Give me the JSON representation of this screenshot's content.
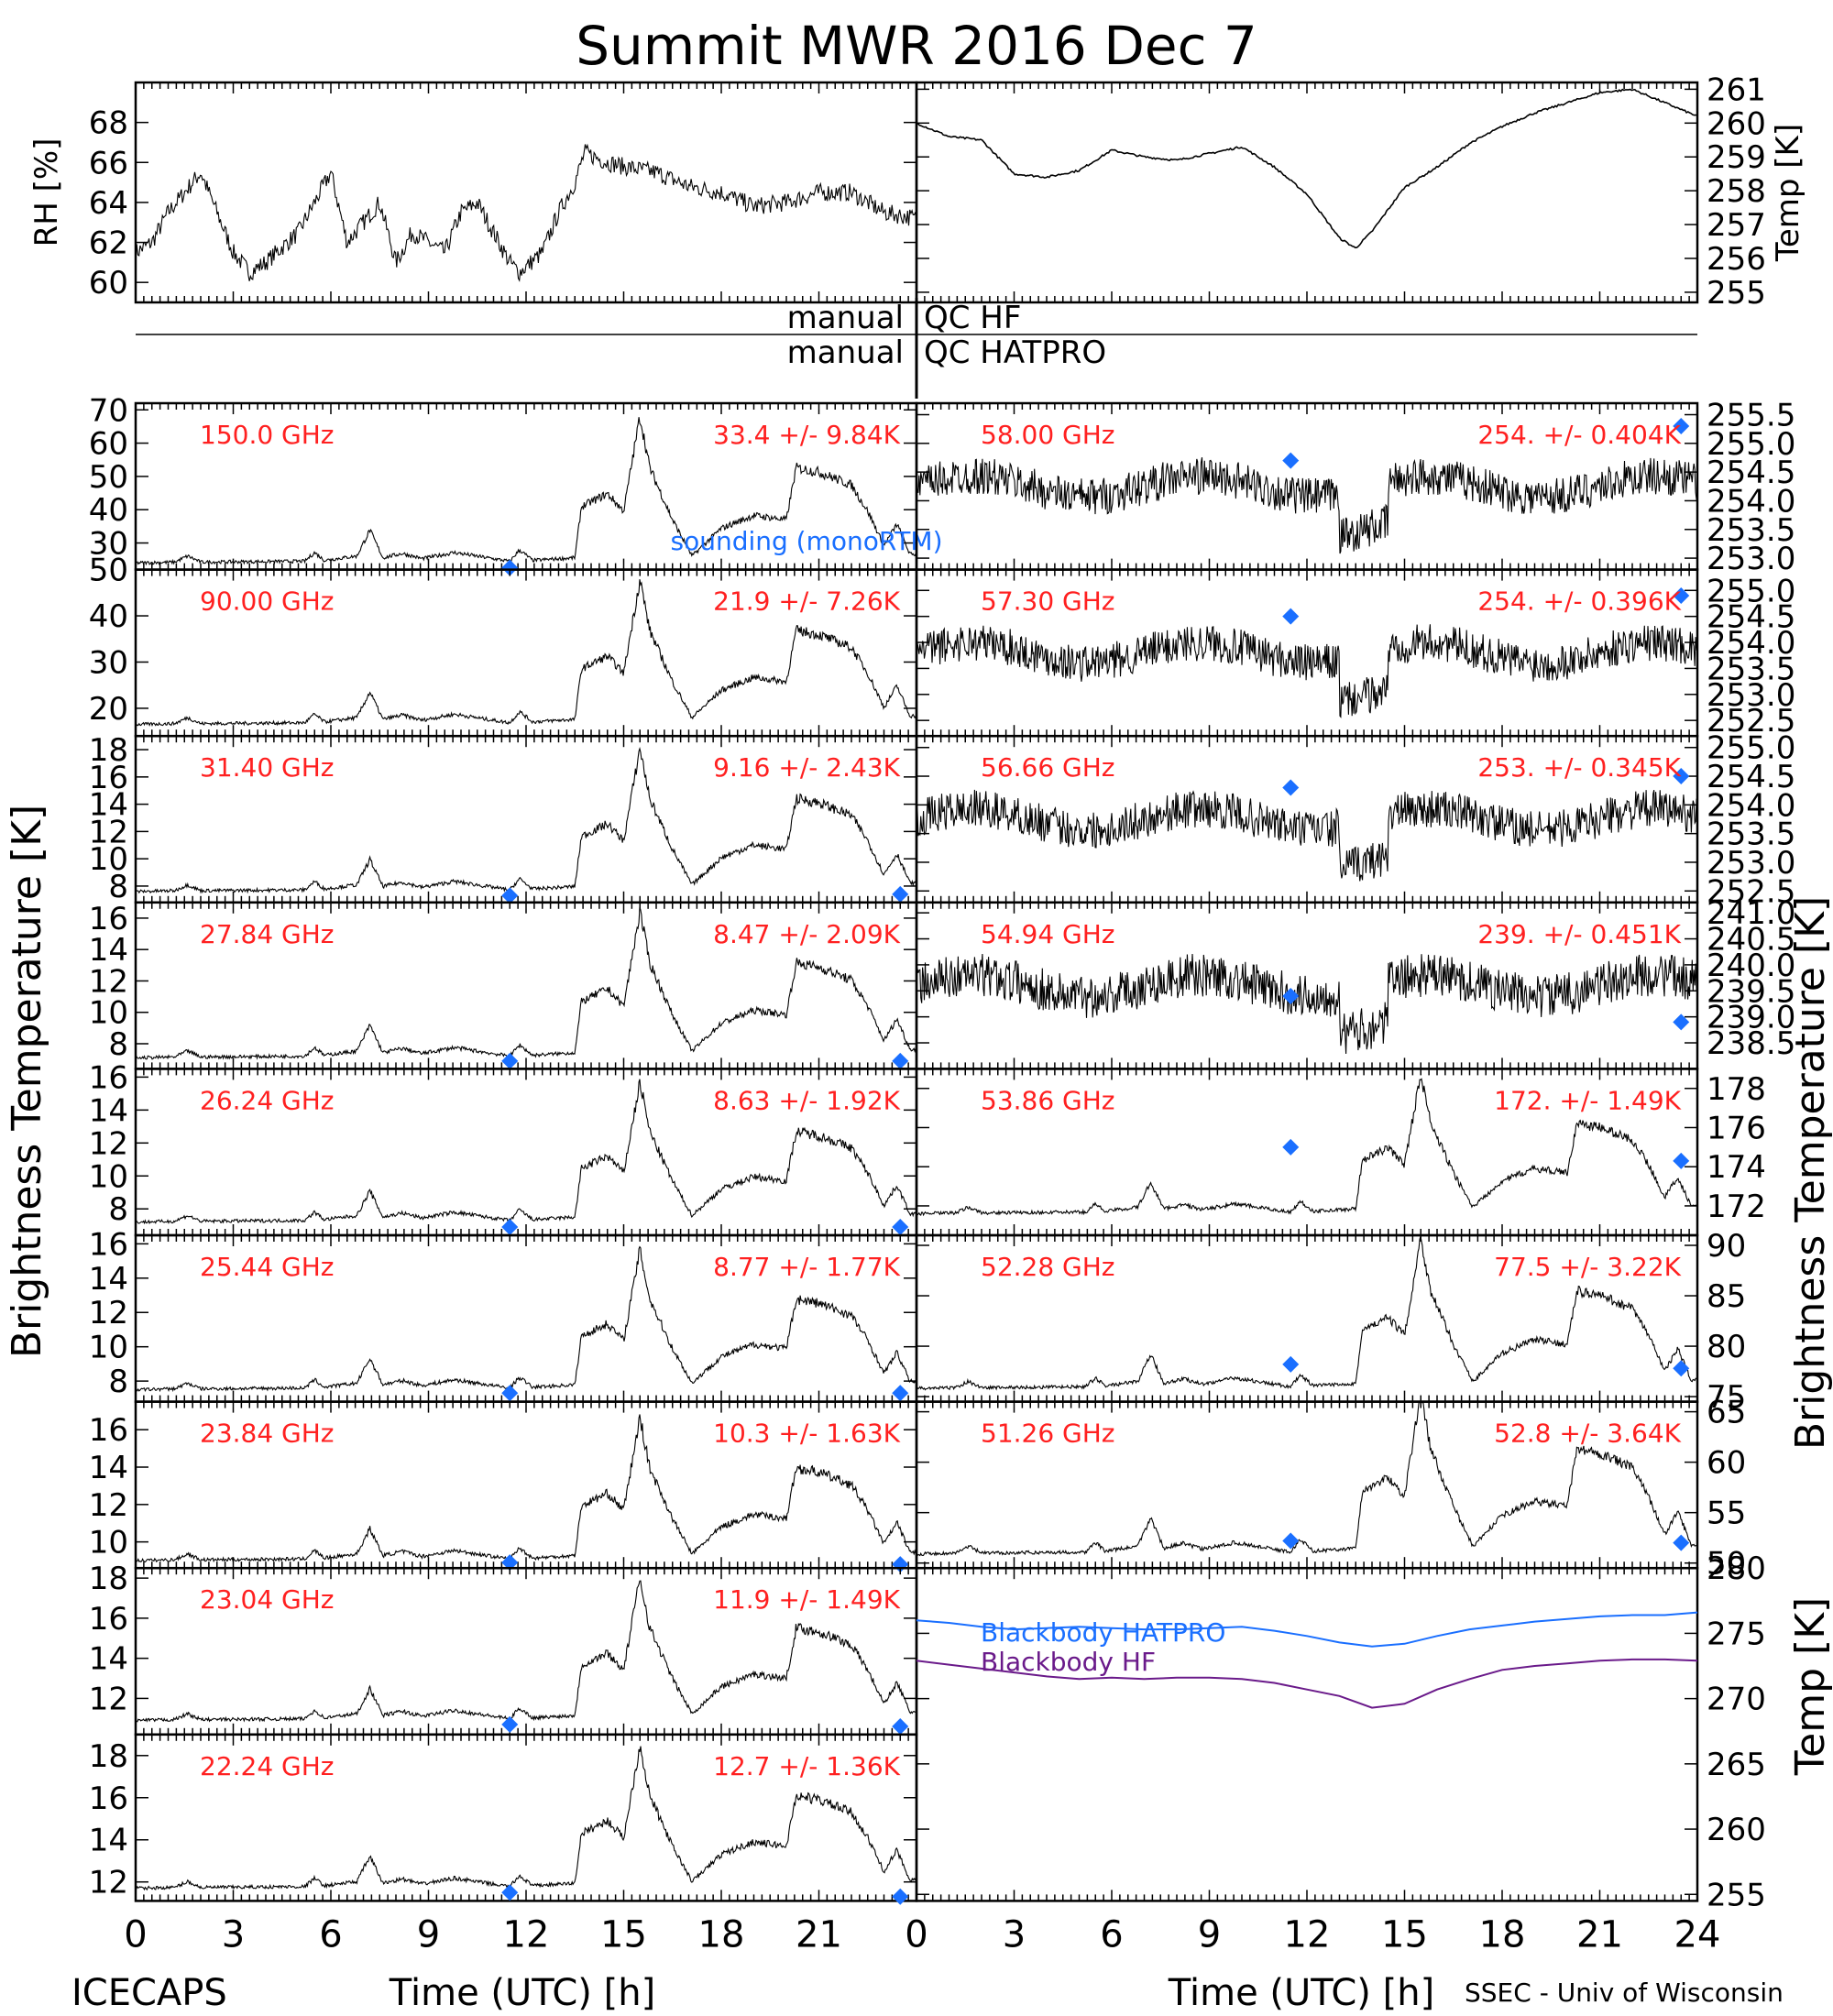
{
  "chart_data": {
    "type": "line",
    "title": "Summit MWR 2016 Dec  7",
    "xlabel": "Time (UTC) [h]",
    "xticks": [
      "0",
      "3",
      "6",
      "9",
      "12",
      "15",
      "18",
      "21",
      "0",
      "3",
      "6",
      "9",
      "12",
      "15",
      "18",
      "21",
      "24"
    ],
    "xlim": [
      0,
      24
    ],
    "ylabel_left": "Brightness Temperature [K]",
    "ylabel_right": "Brightness Temperature [K]",
    "footer_left": "ICECAPS",
    "footer_right": "SSEC - Univ of Wisconsin",
    "qc_labels": {
      "hf_left": "manual",
      "hf_right": "QC HF",
      "hat_left": "manual",
      "hat_right": "QC HATPRO"
    },
    "legend": {
      "sounding": "sounding (monoRTM)",
      "bb_hatpro": "Blackbody HATPRO",
      "bb_hf": "Blackbody HF"
    },
    "colors": {
      "channel_label": "#ff2020",
      "sounding": "#1a6fff",
      "bb_hatpro": "#1a6fff",
      "bb_hf": "#6a1a8a",
      "trace": "#000000"
    },
    "met": {
      "rh": {
        "label": "RH [%]",
        "ylim": [
          59,
          70
        ],
        "yticks": [
          "60",
          "62",
          "64",
          "66",
          "68"
        ],
        "t": [
          0,
          0.5,
          1,
          1.5,
          2,
          3,
          3.5,
          4,
          5,
          5.5,
          6,
          6.5,
          7,
          7.5,
          8,
          8.5,
          9,
          9.5,
          10,
          10.5,
          11,
          11.5,
          11.8,
          12.5,
          13,
          13.5,
          13.8,
          14.5,
          15,
          16,
          17,
          18,
          19,
          20,
          21,
          22,
          23,
          24
        ],
        "v": [
          61.5,
          62,
          63.5,
          64.5,
          65.5,
          61.5,
          60.5,
          61,
          62.5,
          64,
          65.5,
          62,
          63,
          64,
          61,
          62.5,
          62,
          61.5,
          63.5,
          64,
          62.5,
          61,
          60.5,
          61.5,
          63.5,
          65,
          66.5,
          66,
          65.8,
          65.5,
          64.8,
          64.5,
          63.8,
          64,
          64.5,
          64.5,
          63.5,
          63.2
        ]
      },
      "temp": {
        "label": "Temp [K]",
        "ylim": [
          254.7,
          261.2
        ],
        "yticks": [
          "255",
          "256",
          "257",
          "258",
          "259",
          "260",
          "261"
        ],
        "t": [
          0,
          1,
          2,
          3,
          4,
          5,
          6,
          7,
          8,
          9,
          10,
          11,
          12,
          13,
          13.5,
          14,
          15,
          16,
          17,
          18,
          19,
          20,
          21,
          22,
          23,
          24
        ],
        "v": [
          260,
          259.6,
          259.5,
          258.5,
          258.4,
          258.6,
          259.2,
          259,
          258.9,
          259.1,
          259.3,
          258.7,
          257.9,
          256.6,
          256.3,
          256.8,
          258.1,
          258.7,
          259.4,
          259.9,
          260.3,
          260.6,
          260.9,
          261,
          260.6,
          260.2
        ]
      }
    },
    "left_panels": [
      {
        "channel": "150.0 GHz",
        "stat": "33.4 +/-  9.84K",
        "ylim": [
          22,
          72
        ],
        "yticks": [
          "30",
          "40",
          "50",
          "60",
          "70"
        ],
        "base": 24,
        "scale": 2.6,
        "sound": [
          [
            11.5,
            22.5
          ]
        ]
      },
      {
        "channel": "90.00 GHz",
        "stat": "21.9 +/-  7.26K",
        "ylim": [
          14,
          50
        ],
        "yticks": [
          "20",
          "30",
          "40",
          "50"
        ],
        "base": 16.5,
        "scale": 1.85,
        "sound": []
      },
      {
        "channel": "31.40 GHz",
        "stat": "9.16 +/-  2.43K",
        "ylim": [
          6.8,
          19
        ],
        "yticks": [
          "8",
          "10",
          "12",
          "14",
          "16",
          "18"
        ],
        "base": 7.6,
        "scale": 0.62,
        "sound": [
          [
            11.5,
            7.3
          ],
          [
            23.5,
            7.4
          ]
        ]
      },
      {
        "channel": "27.84 GHz",
        "stat": "8.47 +/-  2.09K",
        "ylim": [
          6.4,
          17
        ],
        "yticks": [
          "8",
          "10",
          "12",
          "14",
          "16"
        ],
        "base": 7.1,
        "scale": 0.55,
        "sound": [
          [
            11.5,
            6.9
          ],
          [
            23.5,
            6.9
          ]
        ]
      },
      {
        "channel": "26.24 GHz",
        "stat": "8.63 +/-  1.92K",
        "ylim": [
          6.4,
          16.5
        ],
        "yticks": [
          "8",
          "10",
          "12",
          "14",
          "16"
        ],
        "base": 7.2,
        "scale": 0.5,
        "sound": [
          [
            11.5,
            6.9
          ],
          [
            23.5,
            6.9
          ]
        ]
      },
      {
        "channel": "25.44 GHz",
        "stat": "8.77 +/-  1.77K",
        "ylim": [
          6.8,
          16.5
        ],
        "yticks": [
          "8",
          "10",
          "12",
          "14",
          "16"
        ],
        "base": 7.5,
        "scale": 0.48,
        "sound": [
          [
            11.5,
            7.3
          ],
          [
            23.5,
            7.3
          ]
        ]
      },
      {
        "channel": "23.84 GHz",
        "stat": "10.3 +/-  1.63K",
        "ylim": [
          8.6,
          17.5
        ],
        "yticks": [
          "10",
          "12",
          "14",
          "16"
        ],
        "base": 9,
        "scale": 0.45,
        "sound": [
          [
            11.5,
            8.9
          ],
          [
            23.5,
            8.8
          ]
        ]
      },
      {
        "channel": "23.04 GHz",
        "stat": "11.9 +/-  1.49K",
        "ylim": [
          10.2,
          18.5
        ],
        "yticks": [
          "12",
          "14",
          "16",
          "18"
        ],
        "base": 10.9,
        "scale": 0.42,
        "sound": [
          [
            11.5,
            10.7
          ],
          [
            23.5,
            10.6
          ]
        ]
      },
      {
        "channel": "22.24 GHz",
        "stat": "12.7 +/-  1.36K",
        "ylim": [
          11.1,
          19
        ],
        "yticks": [
          "12",
          "14",
          "16",
          "18"
        ],
        "base": 11.7,
        "scale": 0.4,
        "sound": [
          [
            11.5,
            11.5
          ],
          [
            23.5,
            11.3
          ]
        ]
      }
    ],
    "right_panels": [
      {
        "channel": "58.00 GHz",
        "stat": "254. +/- 0.404K",
        "ylim": [
          252.8,
          255.7
        ],
        "yticks": [
          "253.0",
          "253.5",
          "254.0",
          "254.5",
          "255.0",
          "255.5"
        ],
        "noise": 0.22,
        "sound": [
          [
            11.5,
            254.7
          ],
          [
            23.5,
            255.3
          ]
        ]
      },
      {
        "channel": "57.30 GHz",
        "stat": "254. +/- 0.396K",
        "ylim": [
          252.2,
          255.4
        ],
        "yticks": [
          "252.5",
          "253.0",
          "253.5",
          "254.0",
          "254.5",
          "255.0"
        ],
        "noise": 0.24,
        "sound": [
          [
            11.5,
            254.5
          ],
          [
            23.5,
            254.9
          ]
        ]
      },
      {
        "channel": "56.66 GHz",
        "stat": "253. +/- 0.345K",
        "ylim": [
          252.3,
          255.2
        ],
        "yticks": [
          "252.5",
          "253.0",
          "253.5",
          "254.0",
          "254.5",
          "255.0"
        ],
        "noise": 0.22,
        "sound": [
          [
            11.5,
            254.3
          ],
          [
            23.5,
            254.5
          ]
        ]
      },
      {
        "channel": "54.94 GHz",
        "stat": "239. +/- 0.451K",
        "ylim": [
          238.0,
          241.2
        ],
        "yticks": [
          "238.5",
          "239.0",
          "239.5",
          "240.0",
          "240.5",
          "241.0"
        ],
        "noise": 0.28,
        "sound": [
          [
            11.5,
            239.4
          ],
          [
            23.5,
            238.9
          ]
        ]
      },
      {
        "channel": "53.86 GHz",
        "stat": "172. +/- 1.49K",
        "ylim": [
          170.5,
          179
        ],
        "yticks": [
          "172",
          "174",
          "176",
          "178"
        ],
        "base": 171.6,
        "scale": 0.42,
        "sound": [
          [
            11.5,
            175
          ],
          [
            23.5,
            174.3
          ]
        ]
      },
      {
        "channel": "52.28 GHz",
        "stat": "77.5 +/-  3.22K",
        "ylim": [
          74.5,
          91
        ],
        "yticks": [
          "75",
          "80",
          "85",
          "90"
        ],
        "base": 75.8,
        "scale": 0.88,
        "sound": [
          [
            11.5,
            78.2
          ],
          [
            23.5,
            77.8
          ]
        ]
      },
      {
        "channel": "51.26 GHz",
        "stat": "52.8 +/-  3.64K",
        "ylim": [
          49.5,
          66
        ],
        "yticks": [
          "50",
          "55",
          "60",
          "65"
        ],
        "base": 50.9,
        "scale": 0.95,
        "sound": [
          [
            11.5,
            52.2
          ],
          [
            23.5,
            52
          ]
        ]
      }
    ],
    "blackbody": {
      "ylabel": "Temp [K]",
      "ylim": [
        254.5,
        280
      ],
      "yticks": [
        "255",
        "260",
        "265",
        "270",
        "275",
        "280"
      ],
      "t": [
        0,
        1,
        2,
        3,
        4,
        5,
        6,
        7,
        8,
        9,
        10,
        11,
        12,
        13,
        14,
        15,
        16,
        17,
        18,
        19,
        20,
        21,
        22,
        23,
        24
      ],
      "hatpro": [
        276,
        275.8,
        275.5,
        275.3,
        275.4,
        275.5,
        275.4,
        275.3,
        275.3,
        275.4,
        275.5,
        275.2,
        274.8,
        274.3,
        274,
        274.2,
        274.8,
        275.3,
        275.6,
        275.9,
        276.1,
        276.3,
        276.4,
        276.4,
        276.6
      ],
      "hf": [
        272.9,
        272.6,
        272.3,
        272,
        271.7,
        271.5,
        271.6,
        271.5,
        271.6,
        271.6,
        271.5,
        271.2,
        270.7,
        270.2,
        269.3,
        269.6,
        270.7,
        271.5,
        272.2,
        272.5,
        272.7,
        272.9,
        273,
        273,
        272.9
      ]
    },
    "mode": [
      [
        0,
        0
      ],
      [
        1.2,
        0.1
      ],
      [
        1.6,
        0.8
      ],
      [
        2,
        0.1
      ],
      [
        5.2,
        0.2
      ],
      [
        5.5,
        1.2
      ],
      [
        5.8,
        0.3
      ],
      [
        6.8,
        0.8
      ],
      [
        7.2,
        3.8
      ],
      [
        7.6,
        0.6
      ],
      [
        8.2,
        1.1
      ],
      [
        8.8,
        0.5
      ],
      [
        9.8,
        1.2
      ],
      [
        10.8,
        0.6
      ],
      [
        11.5,
        0.2
      ],
      [
        11.8,
        1.5
      ],
      [
        12.2,
        0.3
      ],
      [
        13.5,
        0.6
      ],
      [
        13.7,
        6.5
      ],
      [
        14.5,
        8
      ],
      [
        15,
        6
      ],
      [
        15.5,
        17
      ],
      [
        15.8,
        11
      ],
      [
        16.5,
        5
      ],
      [
        17.1,
        0.8
      ],
      [
        18,
        4
      ],
      [
        19,
        5.5
      ],
      [
        20,
        5
      ],
      [
        20.3,
        11
      ],
      [
        21,
        10.5
      ],
      [
        22,
        9
      ],
      [
        22.5,
        6
      ],
      [
        23,
        2
      ],
      [
        23.4,
        4.5
      ],
      [
        23.8,
        1
      ]
    ]
  }
}
